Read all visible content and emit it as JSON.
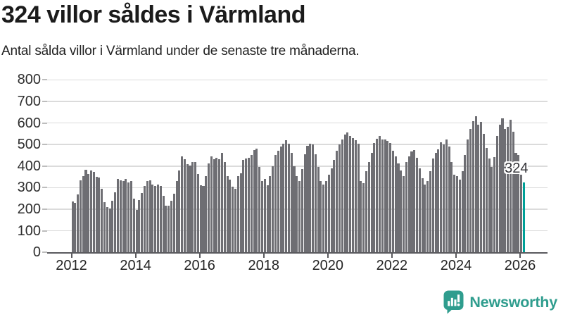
{
  "header": {
    "title": "324 villor såldes i Värmland",
    "subtitle": "Antal sålda villor i Värmland under de senaste tre månaderna."
  },
  "annotation": {
    "label": "324"
  },
  "branding": {
    "wordmark": "Newsworthy",
    "icon": "speech-bubble-bar-chart",
    "color": "#2f9d8e"
  },
  "colors": {
    "bar": "#6E6E73",
    "highlight": "#00A098",
    "grid": "#DBDBDB",
    "axis": "#5A5A5E",
    "title_text": "#1B1B1B",
    "tick_text": "#2E2E2E"
  },
  "chart_data": {
    "type": "bar",
    "title": "324 villor såldes i Värmland",
    "subtitle": "Antal sålda villor i Värmland under de senaste tre månaderna.",
    "x_start_month": "2012-01",
    "x_end_month": "2026-02",
    "x_tick_years": [
      2012,
      2014,
      2016,
      2018,
      2020,
      2022,
      2024,
      2026
    ],
    "x_tick_labels": [
      "2012",
      "2014",
      "2016",
      "2018",
      "2020",
      "2022",
      "2024",
      "2026"
    ],
    "y_ticks": [
      0,
      100,
      200,
      300,
      400,
      500,
      600,
      700,
      800
    ],
    "y_tick_labels": [
      "0",
      "100",
      "200",
      "300",
      "400",
      "500",
      "600",
      "700",
      "800"
    ],
    "ylim": [
      0,
      800
    ],
    "grid": "horizontal",
    "legend": "none",
    "values": [
      236,
      230,
      270,
      335,
      354,
      383,
      365,
      379,
      372,
      350,
      346,
      294,
      234,
      209,
      205,
      239,
      280,
      340,
      335,
      332,
      340,
      324,
      332,
      250,
      198,
      243,
      274,
      307,
      330,
      335,
      316,
      308,
      316,
      307,
      263,
      218,
      215,
      239,
      272,
      332,
      381,
      446,
      433,
      408,
      403,
      419,
      418,
      365,
      310,
      308,
      354,
      413,
      446,
      432,
      438,
      432,
      460,
      419,
      354,
      337,
      305,
      294,
      354,
      367,
      430,
      435,
      438,
      452,
      475,
      482,
      397,
      330,
      340,
      310,
      355,
      400,
      451,
      470,
      490,
      505,
      519,
      505,
      460,
      400,
      355,
      330,
      385,
      455,
      495,
      505,
      500,
      455,
      395,
      330,
      315,
      330,
      360,
      390,
      430,
      470,
      500,
      525,
      545,
      555,
      540,
      530,
      520,
      505,
      330,
      322,
      375,
      419,
      462,
      506,
      528,
      539,
      522,
      524,
      517,
      506,
      470,
      445,
      413,
      381,
      354,
      419,
      446,
      468,
      473,
      440,
      390,
      343,
      316,
      330,
      375,
      435,
      462,
      479,
      511,
      500,
      522,
      490,
      420,
      360,
      354,
      337,
      375,
      452,
      522,
      571,
      609,
      631,
      593,
      604,
      549,
      484,
      435,
      397,
      441,
      539,
      593,
      620,
      571,
      582,
      615,
      560,
      460,
      450,
      360,
      324
    ],
    "highlight": {
      "index": 169,
      "value": 324,
      "label": "324",
      "color": "#00A098"
    },
    "bar_color": "#6E6E73"
  }
}
